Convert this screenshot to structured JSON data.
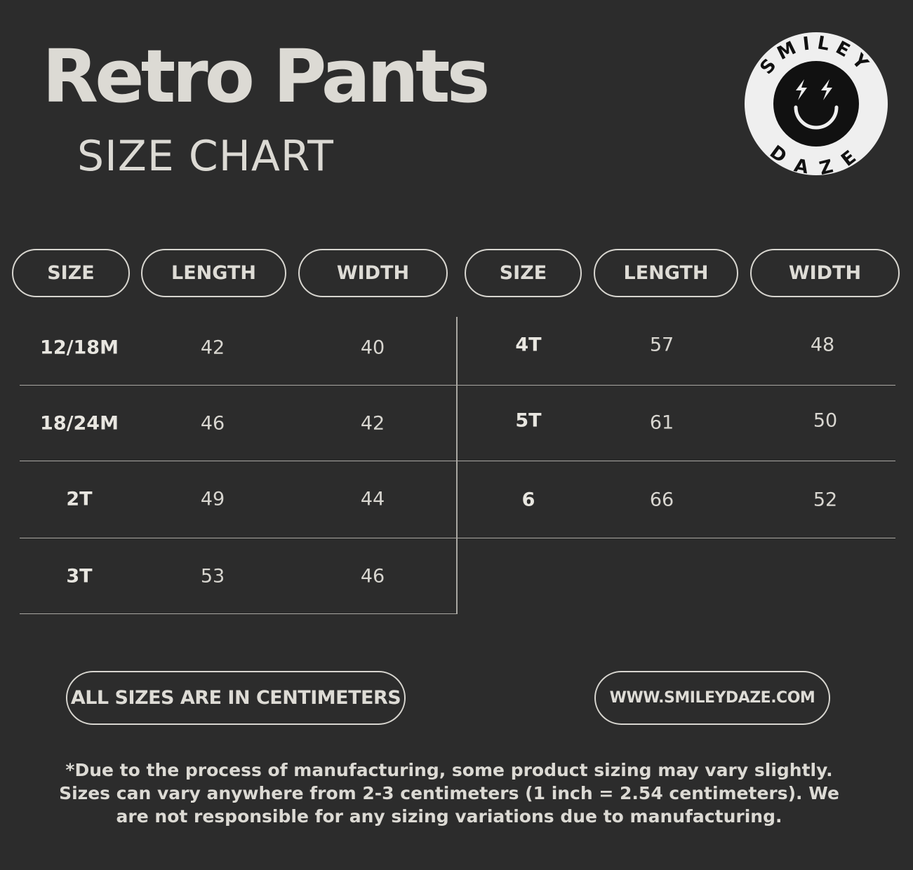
{
  "title": "Retro Pants",
  "subtitle": "SIZE CHART",
  "logo": {
    "text_top": "SMILEY",
    "text_bottom": "DAZE",
    "icon": "smiley-face-lightning-eyes"
  },
  "headers": [
    "SIZE",
    "LENGTH",
    "WIDTH",
    "SIZE",
    "LENGTH",
    "WIDTH"
  ],
  "left_rows": [
    {
      "size": "12/18M",
      "length": "42",
      "width": "40"
    },
    {
      "size": "18/24M",
      "length": "46",
      "width": "42"
    },
    {
      "size": "2T",
      "length": "49",
      "width": "44"
    },
    {
      "size": "3T",
      "length": "53",
      "width": "46"
    }
  ],
  "right_rows": [
    {
      "size": "4T",
      "length": "57",
      "width": "48"
    },
    {
      "size": "5T",
      "length": "61",
      "width": "50"
    },
    {
      "size": "6",
      "length": "66",
      "width": "52"
    }
  ],
  "units_note": "ALL SIZES ARE IN CENTIMETERS",
  "website": "WWW.SMILEYDAZE.COM",
  "disclaimer": [
    "*Due to the process of manufacturing, some product sizing may vary slightly.",
    "Sizes can vary anywhere from 2-3 centimeters (1 inch = 2.54 centimeters). We",
    "are not responsible for any sizing variations due to manufacturing."
  ],
  "colors": {
    "background": "#2c2c2c",
    "text": "#e4e2dc"
  }
}
